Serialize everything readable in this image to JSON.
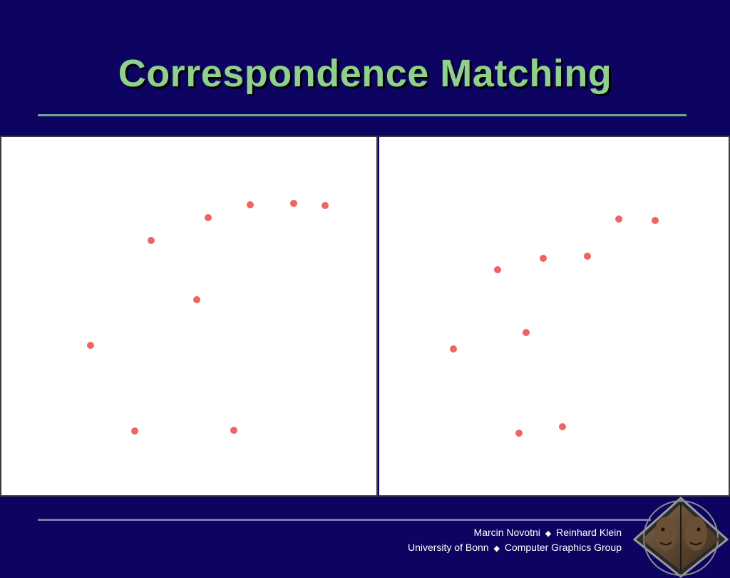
{
  "slide": {
    "title": "Correspondence Matching"
  },
  "footer": {
    "author1": "Marcin Novotni",
    "author2": "Reinhard Klein",
    "affiliation": "University of Bonn",
    "group": "Computer Graphics Group",
    "separator": "◆"
  },
  "colors": {
    "background": "#0c0460",
    "title": "#8fd08c",
    "point": "#ee6464"
  },
  "logo": {
    "icon": "faces-diamond-logo-icon"
  }
}
